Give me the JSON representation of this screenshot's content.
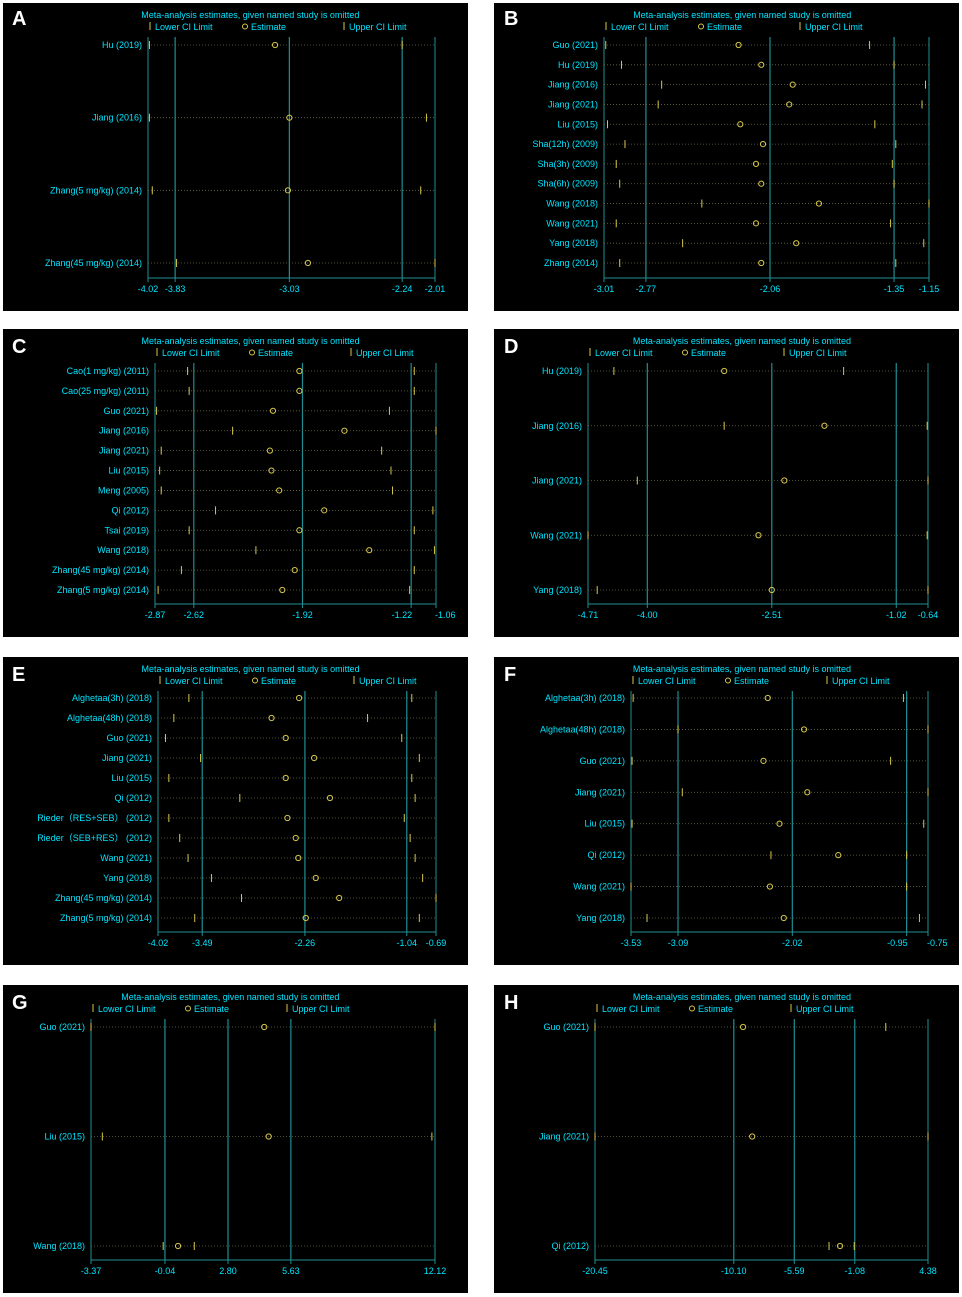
{
  "colors": {
    "background": "#000000",
    "text": "#00e5ff",
    "axis": "#1f8f94",
    "estimate": "#d8c84a",
    "lower_marker": "#d8c84a",
    "upper_marker": "#d8c84a",
    "dotted": "#6a6a4a"
  },
  "legend": {
    "title": "Meta-analysis estimates, given named study is omitted",
    "lower": "Lower CI Limit",
    "estimate": "Estimate",
    "upper": "Upper CI Limit"
  },
  "chart_data": [
    {
      "panel": "A",
      "type": "scatter",
      "xlim": [
        -4.02,
        -2.01
      ],
      "ticks": [
        "-4.02",
        "-3.83",
        "-3.03",
        "-2.24",
        "-2.01"
      ],
      "vlines": [
        -3.83,
        -3.03,
        -2.24
      ],
      "studies": [
        {
          "name": "Hu (2019)",
          "lower": -4.01,
          "estimate": -3.13,
          "upper": -2.24
        },
        {
          "name": "Jiang (2016)",
          "lower": -4.01,
          "estimate": -3.03,
          "upper": -2.07
        },
        {
          "name": "Zhang(5 mg/kg) (2014)",
          "lower": -3.99,
          "estimate": -3.04,
          "upper": -2.11
        },
        {
          "name": "Zhang(45 mg/kg) (2014)",
          "lower": -3.82,
          "estimate": -2.9,
          "upper": -2.01
        }
      ]
    },
    {
      "panel": "B",
      "type": "scatter",
      "xlim": [
        -3.01,
        -1.15
      ],
      "ticks": [
        "-3.01",
        "-2.77",
        "-2.06",
        "-1.35",
        "-1.15"
      ],
      "vlines": [
        -2.77,
        -2.06,
        -1.35
      ],
      "studies": [
        {
          "name": "Guo (2021)",
          "lower": -3.0,
          "estimate": -2.24,
          "upper": -1.49
        },
        {
          "name": "Hu (2019)",
          "lower": -2.91,
          "estimate": -2.11,
          "upper": -1.35
        },
        {
          "name": "Jiang (2016)",
          "lower": -2.68,
          "estimate": -1.93,
          "upper": -1.17
        },
        {
          "name": "Jiang (2021)",
          "lower": -2.7,
          "estimate": -1.95,
          "upper": -1.19
        },
        {
          "name": "Liu (2015)",
          "lower": -2.99,
          "estimate": -2.23,
          "upper": -1.46
        },
        {
          "name": "Sha(12h) (2009)",
          "lower": -2.89,
          "estimate": -2.1,
          "upper": -1.34
        },
        {
          "name": "Sha(3h) (2009)",
          "lower": -2.94,
          "estimate": -2.14,
          "upper": -1.36
        },
        {
          "name": "Sha(6h) (2009)",
          "lower": -2.92,
          "estimate": -2.11,
          "upper": -1.35
        },
        {
          "name": "Wang (2018)",
          "lower": -2.45,
          "estimate": -1.78,
          "upper": -1.15
        },
        {
          "name": "Wang (2021)",
          "lower": -2.94,
          "estimate": -2.14,
          "upper": -1.37
        },
        {
          "name": "Yang (2018)",
          "lower": -2.56,
          "estimate": -1.91,
          "upper": -1.18
        },
        {
          "name": "Zhang (2014)",
          "lower": -2.92,
          "estimate": -2.11,
          "upper": -1.34
        }
      ]
    },
    {
      "panel": "C",
      "type": "scatter",
      "xlim": [
        -2.87,
        -1.06
      ],
      "ticks": [
        "-2.87",
        "-2.62",
        "-1.92",
        "-1.22",
        "-1.06"
      ],
      "vlines": [
        -2.62,
        -1.92,
        -1.22
      ],
      "studies": [
        {
          "name": "Cao(1 mg/kg) (2011)",
          "lower": -2.66,
          "estimate": -1.94,
          "upper": -1.2
        },
        {
          "name": "Cao(25 mg/kg) (2011)",
          "lower": -2.65,
          "estimate": -1.94,
          "upper": -1.2
        },
        {
          "name": "Guo (2021)",
          "lower": -2.86,
          "estimate": -2.11,
          "upper": -1.36
        },
        {
          "name": "Jiang (2016)",
          "lower": -2.37,
          "estimate": -1.65,
          "upper": -1.06
        },
        {
          "name": "Jiang (2021)",
          "lower": -2.83,
          "estimate": -2.13,
          "upper": -1.41
        },
        {
          "name": "Liu (2015)",
          "lower": -2.84,
          "estimate": -2.12,
          "upper": -1.35
        },
        {
          "name": "Meng (2005)",
          "lower": -2.83,
          "estimate": -2.07,
          "upper": -1.34
        },
        {
          "name": "Qi (2012)",
          "lower": -2.48,
          "estimate": -1.78,
          "upper": -1.08
        },
        {
          "name": "Tsai (2019)",
          "lower": -2.65,
          "estimate": -1.94,
          "upper": -1.2
        },
        {
          "name": "Wang (2018)",
          "lower": -2.22,
          "estimate": -1.49,
          "upper": -1.07
        },
        {
          "name": "Zhang(45 mg/kg) (2014)",
          "lower": -2.7,
          "estimate": -1.97,
          "upper": -1.2
        },
        {
          "name": "Zhang(5 mg/kg) (2014)",
          "lower": -2.85,
          "estimate": -2.05,
          "upper": -1.23
        }
      ]
    },
    {
      "panel": "D",
      "type": "scatter",
      "xlim": [
        -4.71,
        -0.64
      ],
      "ticks": [
        "-4.71",
        "-4.00",
        "-2.51",
        "-1.02",
        "-0.64"
      ],
      "vlines": [
        -4.0,
        -2.51,
        -1.02
      ],
      "studies": [
        {
          "name": "Hu (2019)",
          "lower": -4.4,
          "estimate": -3.08,
          "upper": -1.65
        },
        {
          "name": "Jiang (2016)",
          "lower": -3.08,
          "estimate": -1.88,
          "upper": -0.65
        },
        {
          "name": "Jiang (2021)",
          "lower": -4.12,
          "estimate": -2.36,
          "upper": -0.64
        },
        {
          "name": "Wang (2021)",
          "lower": -4.71,
          "estimate": -2.67,
          "upper": -0.65
        },
        {
          "name": "Yang (2018)",
          "lower": -4.6,
          "estimate": -2.51,
          "upper": -0.64
        }
      ]
    },
    {
      "panel": "E",
      "type": "scatter",
      "xlim": [
        -4.02,
        -0.69
      ],
      "ticks": [
        "-4.02",
        "-3.49",
        "-2.26",
        "-1.04",
        "-0.69"
      ],
      "vlines": [
        -3.49,
        -2.26,
        -1.04
      ],
      "studies": [
        {
          "name": "Alghetaa(3h) (2018)",
          "lower": -3.65,
          "estimate": -2.33,
          "upper": -0.98
        },
        {
          "name": "Alghetaa(48h) (2018)",
          "lower": -3.83,
          "estimate": -2.66,
          "upper": -1.51
        },
        {
          "name": "Guo (2021)",
          "lower": -3.93,
          "estimate": -2.49,
          "upper": -1.1
        },
        {
          "name": "Jiang (2021)",
          "lower": -3.51,
          "estimate": -2.15,
          "upper": -0.89
        },
        {
          "name": "Liu (2015)",
          "lower": -3.89,
          "estimate": -2.49,
          "upper": -0.98
        },
        {
          "name": "Qi (2012)",
          "lower": -3.04,
          "estimate": -1.96,
          "upper": -0.94
        },
        {
          "name": "Rieder（RES+SEB） (2012)",
          "lower": -3.89,
          "estimate": -2.47,
          "upper": -1.07
        },
        {
          "name": "Rieder（SEB+RES） (2012)",
          "lower": -3.76,
          "estimate": -2.37,
          "upper": -1.0
        },
        {
          "name": "Wang (2021)",
          "lower": -3.66,
          "estimate": -2.34,
          "upper": -0.94
        },
        {
          "name": "Yang (2018)",
          "lower": -3.38,
          "estimate": -2.13,
          "upper": -0.85
        },
        {
          "name": "Zhang(45 mg/kg) (2014)",
          "lower": -3.02,
          "estimate": -1.85,
          "upper": -0.69
        },
        {
          "name": "Zhang(5 mg/kg) (2014)",
          "lower": -3.58,
          "estimate": -2.25,
          "upper": -0.89
        }
      ]
    },
    {
      "panel": "F",
      "type": "scatter",
      "xlim": [
        -3.53,
        -0.75
      ],
      "ticks": [
        "-3.53",
        "-3.09",
        "-2.02",
        "-0.95",
        "-0.75"
      ],
      "vlines": [
        -3.09,
        -2.02,
        -0.95
      ],
      "studies": [
        {
          "name": "Alghetaa(3h) (2018)",
          "lower": -3.51,
          "estimate": -2.25,
          "upper": -0.98
        },
        {
          "name": "Alghetaa(48h) (2018)",
          "lower": -3.09,
          "estimate": -1.91,
          "upper": -0.75
        },
        {
          "name": "Guo (2021)",
          "lower": -3.52,
          "estimate": -2.29,
          "upper": -1.1
        },
        {
          "name": "Jiang (2021)",
          "lower": -3.05,
          "estimate": -1.88,
          "upper": -0.75
        },
        {
          "name": "Liu (2015)",
          "lower": -3.52,
          "estimate": -2.14,
          "upper": -0.79
        },
        {
          "name": "Qi (2012)",
          "lower": -2.22,
          "estimate": -1.59,
          "upper": -0.95
        },
        {
          "name": "Wang (2021)",
          "lower": -3.53,
          "estimate": -2.23,
          "upper": -0.95
        },
        {
          "name": "Yang (2018)",
          "lower": -3.38,
          "estimate": -2.1,
          "upper": -0.83
        }
      ]
    },
    {
      "panel": "G",
      "type": "scatter",
      "xlim": [
        -3.37,
        12.12
      ],
      "ticks": [
        "-3.37",
        "-0.04",
        "2.80",
        "5.63",
        "12.12"
      ],
      "vlines": [
        -0.04,
        2.8,
        5.63
      ],
      "studies": [
        {
          "name": "Guo (2021)",
          "lower": -3.37,
          "estimate": 4.43,
          "upper": 12.12
        },
        {
          "name": "Liu (2015)",
          "lower": -2.86,
          "estimate": 4.63,
          "upper": 11.98
        },
        {
          "name": "Wang (2018)",
          "lower": -0.12,
          "estimate": 0.55,
          "upper": 1.28
        }
      ]
    },
    {
      "panel": "H",
      "type": "scatter",
      "xlim": [
        -20.45,
        4.38
      ],
      "ticks": [
        "-20.45",
        "-10.10",
        "-5.59",
        "-1.08",
        "4.38"
      ],
      "vlines": [
        -10.1,
        -5.59,
        -1.08
      ],
      "studies": [
        {
          "name": "Guo (2021)",
          "lower": -20.45,
          "estimate": -9.41,
          "upper": 1.23
        },
        {
          "name": "Jiang (2021)",
          "lower": -20.45,
          "estimate": -8.73,
          "upper": 4.38
        },
        {
          "name": "Qi (2012)",
          "lower": -3.0,
          "estimate": -2.18,
          "upper": -1.12
        }
      ]
    }
  ]
}
